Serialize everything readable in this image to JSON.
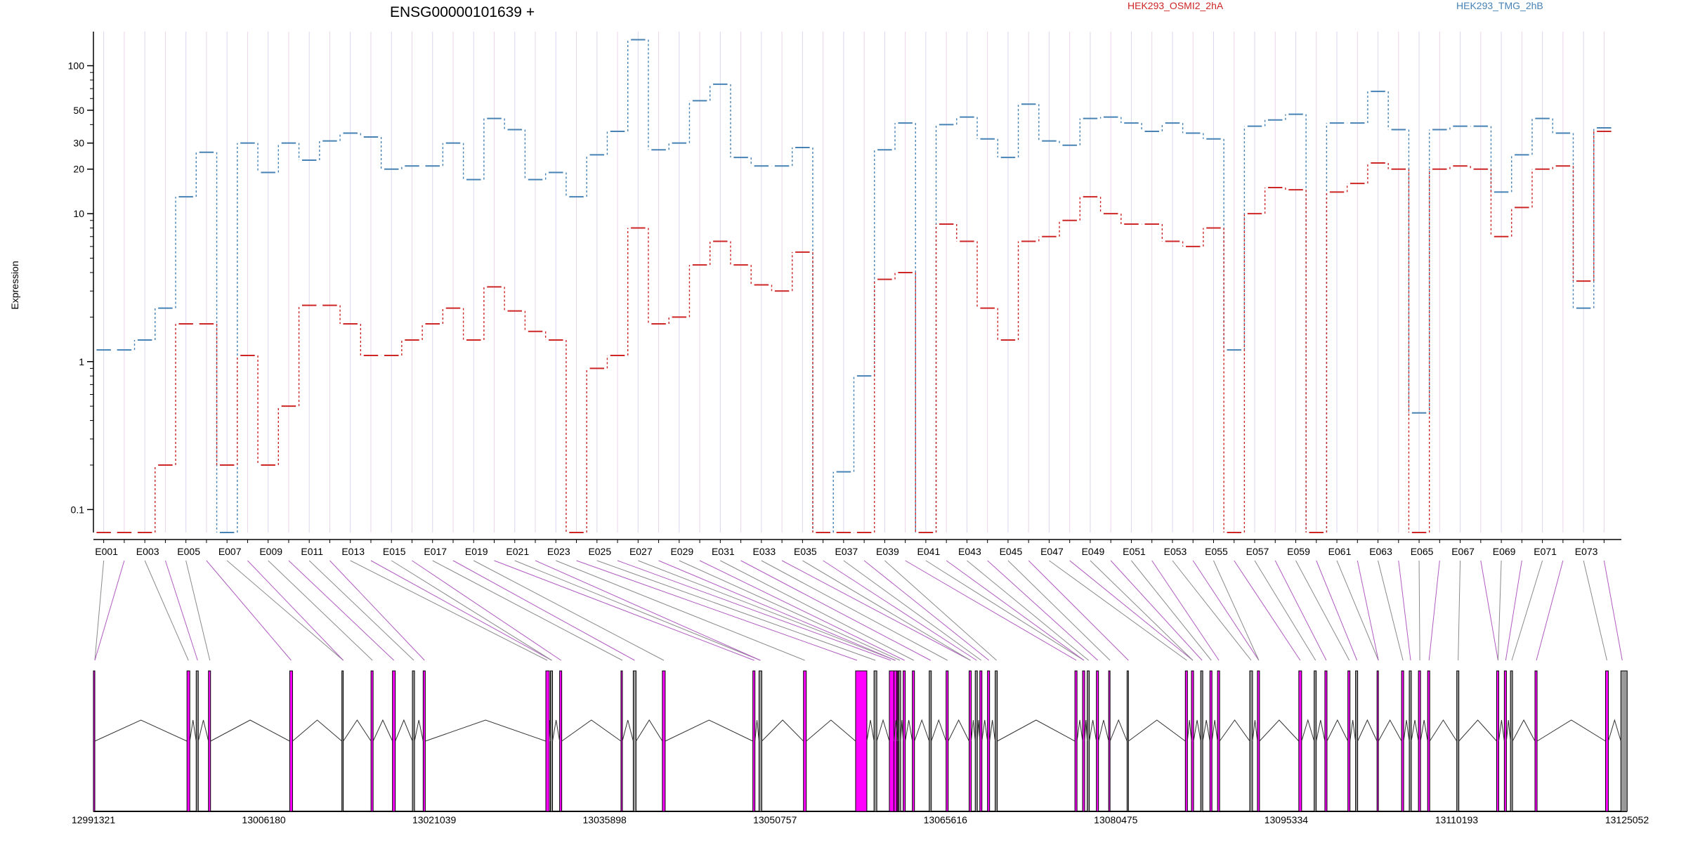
{
  "chart_data": {
    "type": "line",
    "title": "ENSG00000101639 +",
    "ylabel": "Expression",
    "xlabel": "",
    "y_scale": "log",
    "ylim": [
      0.07,
      170
    ],
    "y_ticks": [
      {
        "value": 0.1,
        "label": "0.1"
      },
      {
        "value": 1,
        "label": "1"
      },
      {
        "value": 10,
        "label": "10"
      },
      {
        "value": 20,
        "label": "20"
      },
      {
        "value": 30,
        "label": "30"
      },
      {
        "value": 50,
        "label": "50"
      },
      {
        "value": 100,
        "label": "100"
      }
    ],
    "x_tick_labels": [
      "E001",
      "E003",
      "E005",
      "E007",
      "E009",
      "E011",
      "E013",
      "E015",
      "E017",
      "E019",
      "E021",
      "E023",
      "E025",
      "E027",
      "E029",
      "E031",
      "E033",
      "E035",
      "E037",
      "E039",
      "E041",
      "E043",
      "E045",
      "E047",
      "E049",
      "E051",
      "E053",
      "E055",
      "E057",
      "E059",
      "E061",
      "E063",
      "E065",
      "E067",
      "E069",
      "E071",
      "E073"
    ],
    "categories": [
      "E001",
      "E002",
      "E003",
      "E004",
      "E005",
      "E006",
      "E007",
      "E008",
      "E009",
      "E010",
      "E011",
      "E012",
      "E013",
      "E014",
      "E015",
      "E016",
      "E017",
      "E018",
      "E019",
      "E020",
      "E021",
      "E022",
      "E023",
      "E024",
      "E025",
      "E026",
      "E027",
      "E028",
      "E029",
      "E030",
      "E031",
      "E032",
      "E033",
      "E034",
      "E035",
      "E036",
      "E037",
      "E038",
      "E039",
      "E040",
      "E041",
      "E042",
      "E043",
      "E044",
      "E045",
      "E046",
      "E047",
      "E048",
      "E049",
      "E050",
      "E051",
      "E052",
      "E053",
      "E054",
      "E055",
      "E056",
      "E057",
      "E058",
      "E059",
      "E060",
      "E061",
      "E062",
      "E063",
      "E064",
      "E065",
      "E066",
      "E067",
      "E068",
      "E069",
      "E070",
      "E071",
      "E072",
      "E073",
      "E074"
    ],
    "series": [
      {
        "name": "HEK293_TMG_2hB",
        "color": "#4682b4",
        "values": [
          1.2,
          1.2,
          1.4,
          2.3,
          13,
          26,
          0.07,
          30,
          19,
          30,
          23,
          31,
          35,
          33,
          20,
          21,
          21,
          30,
          17,
          44,
          37,
          17,
          19,
          13,
          25,
          36,
          150,
          27,
          30,
          58,
          75,
          24,
          21,
          21,
          28,
          0.07,
          0.18,
          0.8,
          27,
          41,
          0.07,
          40,
          45,
          32,
          24,
          55,
          31,
          29,
          44,
          45,
          41,
          36,
          41,
          35,
          32,
          1.2,
          39,
          43,
          47,
          0.07,
          41,
          41,
          67,
          37,
          0.45,
          37,
          39,
          39,
          14,
          25,
          44,
          35,
          2.3,
          38
        ]
      },
      {
        "name": "HEK293_OSMI2_2hA",
        "color": "#cd2626",
        "values": [
          0.07,
          0.07,
          0.07,
          0.2,
          1.8,
          1.8,
          0.2,
          1.1,
          0.2,
          0.5,
          2.4,
          2.4,
          1.8,
          1.1,
          1.1,
          1.4,
          1.8,
          2.3,
          1.4,
          3.2,
          2.2,
          1.6,
          1.4,
          0.07,
          0.9,
          1.1,
          8,
          1.8,
          2,
          4.5,
          6.5,
          4.5,
          3.3,
          3,
          5.5,
          0.07,
          0.07,
          0.07,
          3.6,
          4,
          0.07,
          8.5,
          6.5,
          2.3,
          1.4,
          6.5,
          7,
          9,
          13,
          10,
          8.5,
          8.5,
          6.5,
          6,
          8,
          0.07,
          10,
          15,
          14.5,
          0.07,
          14,
          16,
          22,
          20,
          0.07,
          20,
          21,
          20,
          7,
          11,
          20,
          21,
          3.5,
          36
        ]
      }
    ],
    "legend": [
      "HEK293_OSMI2_2hA",
      "HEK293_TMG_2hB"
    ],
    "legend_placement": "top",
    "grid": false
  },
  "gene_model": {
    "coordinate_labels": [
      "12991321",
      "13006180",
      "13021039",
      "13035898",
      "13050757",
      "13065616",
      "13080475",
      "13095334",
      "13110193",
      "13125052"
    ],
    "accent_color": "#ff00ff"
  }
}
